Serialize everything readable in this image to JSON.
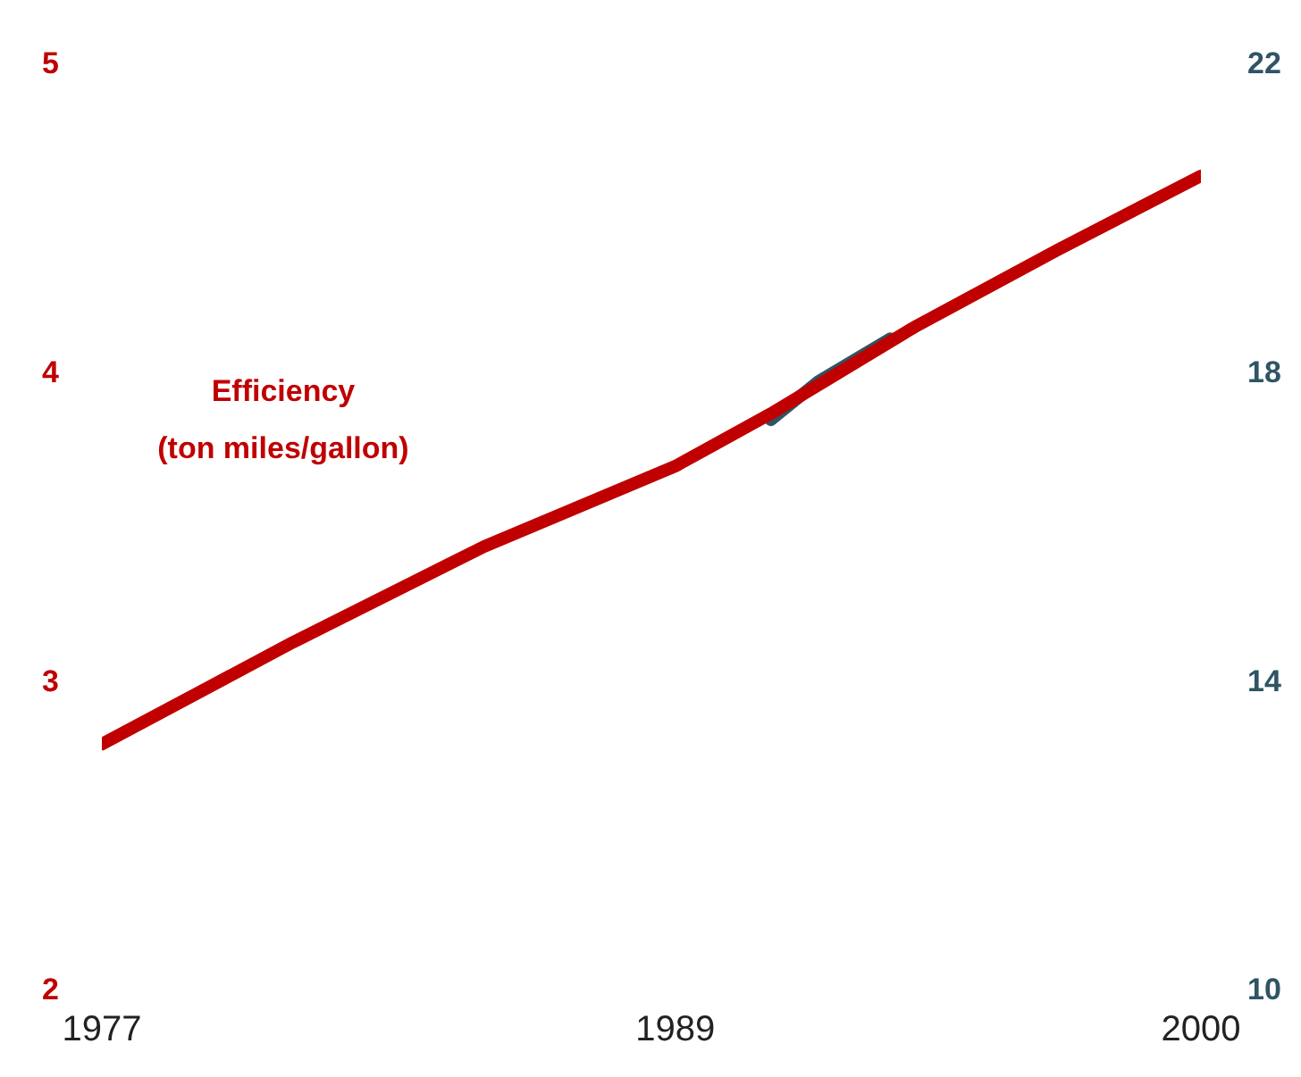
{
  "chart_data": {
    "type": "line",
    "xlim": [
      1977,
      2000
    ],
    "xticks": [
      1977,
      1989,
      2000
    ],
    "ylim": [
      2,
      5
    ],
    "yticks": [
      2,
      3,
      4,
      5
    ],
    "y2lim": [
      10,
      22
    ],
    "y2ticks": [
      10,
      14,
      18,
      22
    ],
    "grid": false,
    "legend": false,
    "marker": "none",
    "line_style": "solid",
    "series": [
      {
        "color": "#2f5564",
        "axis": "y2",
        "x": [
          1991,
          1992,
          1993.5
        ],
        "values": [
          17.4,
          17.9,
          18.45
        ]
      },
      {
        "name": "Efficiency\n(ton miles/gallon)",
        "color": "#c00000",
        "x": [
          1977,
          1981,
          1985,
          1989,
          1991,
          1994,
          1997,
          2000
        ],
        "values": [
          2.8,
          3.13,
          3.44,
          3.7,
          3.87,
          4.15,
          4.4,
          4.64
        ]
      }
    ]
  }
}
